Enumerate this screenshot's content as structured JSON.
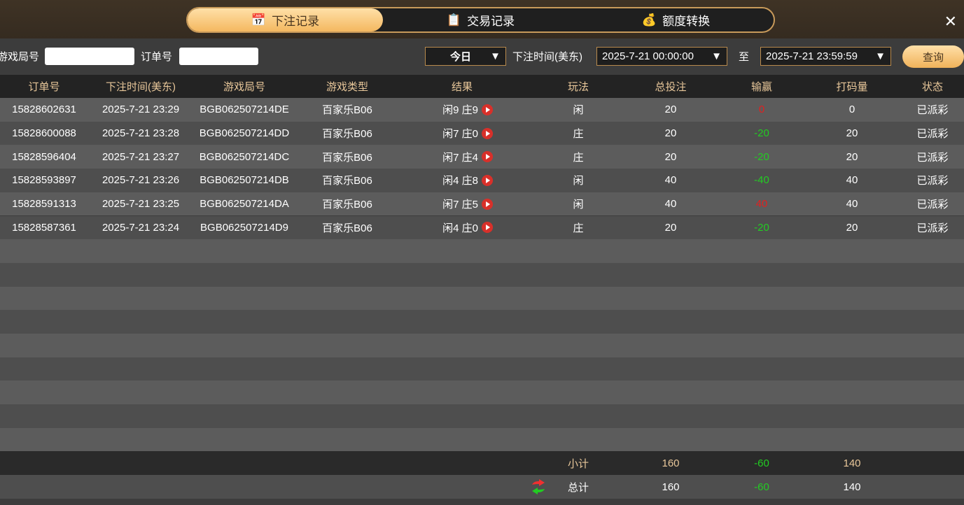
{
  "tabs": [
    {
      "label": "下注记录",
      "icon": "calendar-icon",
      "active": true
    },
    {
      "label": "交易记录",
      "icon": "clipboard-icon"
    },
    {
      "label": "额度转换",
      "icon": "coins-icon"
    }
  ],
  "filter": {
    "round_label": "游戏局号",
    "round_value": "",
    "order_label": "订单号",
    "order_value": "",
    "period": "今日",
    "time_label": "下注时间(美东)",
    "start": "2025-7-21 00:00:00",
    "to_label": "至",
    "end": "2025-7-21 23:59:59",
    "query": "查询"
  },
  "columns": [
    "订单号",
    "下注时间(美东)",
    "游戏局号",
    "游戏类型",
    "结果",
    "玩法",
    "总投注",
    "输赢",
    "打码量",
    "状态"
  ],
  "rows": [
    [
      "15828602631",
      "2025-7-21 23:29",
      "BGB062507214DE",
      "百家乐B06",
      "闲9 庄9",
      "闲",
      "20",
      "0",
      "0",
      "已派彩"
    ],
    [
      "15828600088",
      "2025-7-21 23:28",
      "BGB062507214DD",
      "百家乐B06",
      "闲7 庄0",
      "庄",
      "20",
      "-20",
      "20",
      "已派彩"
    ],
    [
      "15828596404",
      "2025-7-21 23:27",
      "BGB062507214DC",
      "百家乐B06",
      "闲7 庄4",
      "庄",
      "20",
      "-20",
      "20",
      "已派彩"
    ],
    [
      "15828593897",
      "2025-7-21 23:26",
      "BGB062507214DB",
      "百家乐B06",
      "闲4 庄8",
      "闲",
      "40",
      "-40",
      "40",
      "已派彩"
    ],
    [
      "15828591313",
      "2025-7-21 23:25",
      "BGB062507214DA",
      "百家乐B06",
      "闲7 庄5",
      "闲",
      "40",
      "40",
      "40",
      "已派彩"
    ],
    [
      "15828587361",
      "2025-7-21 23:24",
      "BGB062507214D9",
      "百家乐B06",
      "闲4 庄0",
      "庄",
      "20",
      "-20",
      "20",
      "已派彩"
    ]
  ],
  "subtotal": {
    "label": "小计",
    "bet": "160",
    "win": "-60",
    "code": "140"
  },
  "total": {
    "label": "总计",
    "bet": "160",
    "win": "-60",
    "code": "140"
  },
  "colors": {
    "win_positive": "#e02020",
    "win_negative": "#22cc22",
    "header_text": "#e8c79a",
    "accent": "#f4b860"
  }
}
